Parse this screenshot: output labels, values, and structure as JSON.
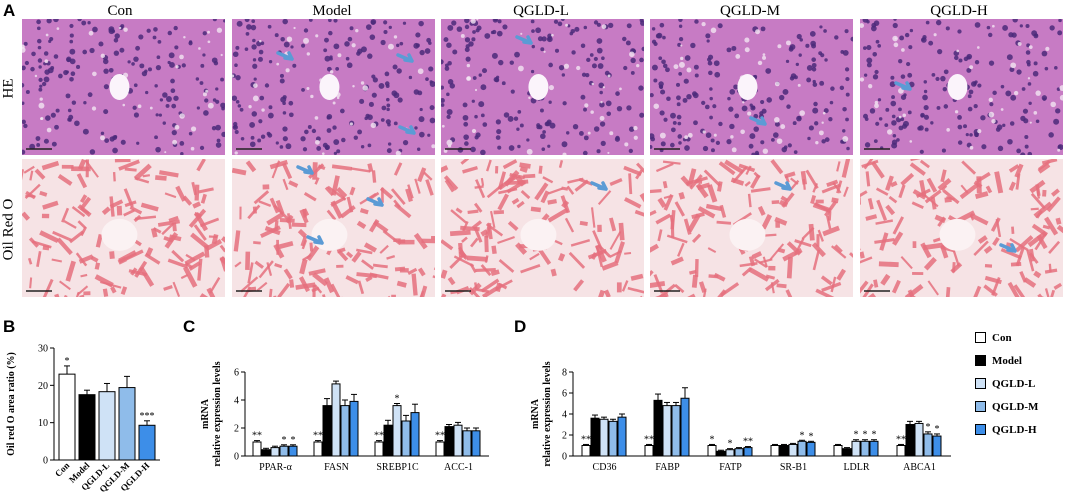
{
  "panel_letters": {
    "a": "A",
    "b": "B",
    "c": "C",
    "d": "D"
  },
  "micrographs": {
    "column_titles": [
      "Con",
      "Model",
      "QGLD-L",
      "QGLD-M",
      "QGLD-H"
    ],
    "row_labels": [
      "HE",
      "Oil Red O"
    ],
    "arrow_color": "#5b9bd5",
    "he_color": "#c77bc4",
    "oil_color": "#e5707e"
  },
  "legend": {
    "items": [
      {
        "label": "Con",
        "color": "#ffffff"
      },
      {
        "label": "Model",
        "color": "#000000"
      },
      {
        "label": "QGLD-L",
        "color": "#cfe2f6"
      },
      {
        "label": "QGLD-M",
        "color": "#8fbcea"
      },
      {
        "label": "QGLD-H",
        "color": "#3d8ee8"
      }
    ]
  },
  "chart_data": [
    {
      "id": "B",
      "type": "bar",
      "ylabel": "Oil red O area ratio (%)",
      "categories": [
        "Con",
        "Model",
        "QGLD-L",
        "QGLD-M",
        "QGLD-H"
      ],
      "values": [
        23,
        17.5,
        18.3,
        19.4,
        9.3
      ],
      "errors": [
        2.2,
        1.2,
        2.2,
        3,
        1.2
      ],
      "significance": [
        "*",
        "",
        "",
        "",
        "***"
      ],
      "colors": [
        "#ffffff",
        "#000000",
        "#cfe2f6",
        "#8fbcea",
        "#3d8ee8"
      ],
      "ylim": [
        0,
        30
      ],
      "yticks": [
        0,
        10,
        20,
        30
      ]
    },
    {
      "id": "C",
      "type": "bar",
      "ylabel_lines": [
        "mRNA",
        "relative expression levels"
      ],
      "categories": [
        "PPAR-α",
        "FASN",
        "SREBP1C",
        "ACC-1"
      ],
      "series": [
        {
          "name": "Con",
          "values": [
            1,
            1,
            1,
            1
          ],
          "errors": [
            0.1,
            0.1,
            0.1,
            0.1
          ],
          "sig": [
            "**",
            "**",
            "**",
            "**"
          ]
        },
        {
          "name": "Model",
          "values": [
            0.45,
            3.6,
            2.2,
            2.1
          ],
          "errors": [
            0.1,
            0.5,
            0.35,
            0.15
          ],
          "sig": [
            "",
            "",
            "",
            ""
          ]
        },
        {
          "name": "QGLD-L",
          "values": [
            0.6,
            5.15,
            3.6,
            2.2
          ],
          "errors": [
            0.1,
            0.2,
            0.15,
            0.2
          ],
          "sig": [
            "",
            "",
            "*",
            ""
          ]
        },
        {
          "name": "QGLD-M",
          "values": [
            0.7,
            3.6,
            2.5,
            1.8
          ],
          "errors": [
            0.1,
            0.4,
            0.4,
            0.2
          ],
          "sig": [
            "*",
            "",
            "",
            ""
          ]
        },
        {
          "name": "QGLD-H",
          "values": [
            0.7,
            3.9,
            3.1,
            1.8
          ],
          "errors": [
            0.1,
            0.5,
            0.6,
            0.2
          ],
          "sig": [
            "*",
            "",
            "",
            ""
          ]
        }
      ],
      "ylim": [
        0,
        6
      ],
      "yticks": [
        0,
        2,
        4,
        6
      ]
    },
    {
      "id": "D",
      "type": "bar",
      "ylabel_lines": [
        "mRNA",
        "relative expression levels"
      ],
      "categories": [
        "CD36",
        "FABP",
        "FATP",
        "SR-B1",
        "LDLR",
        "ABCA1"
      ],
      "series": [
        {
          "name": "Con",
          "values": [
            1,
            1,
            1,
            1,
            1,
            1
          ],
          "errors": [
            0.1,
            0.1,
            0.1,
            0.1,
            0.1,
            0.1
          ],
          "sig": [
            "**",
            "**",
            "*",
            "",
            "",
            "**"
          ]
        },
        {
          "name": "Model",
          "values": [
            3.6,
            5.3,
            0.45,
            1,
            0.7,
            3
          ],
          "errors": [
            0.3,
            0.6,
            0.1,
            0.1,
            0.1,
            0.3
          ],
          "sig": [
            "",
            "",
            "",
            "",
            "",
            ""
          ]
        },
        {
          "name": "QGLD-L",
          "values": [
            3.5,
            4.8,
            0.6,
            1.1,
            1.4,
            3.1
          ],
          "errors": [
            0.2,
            0.3,
            0.1,
            0.1,
            0.15,
            0.2
          ],
          "sig": [
            "",
            "",
            "*",
            "",
            "*",
            ""
          ]
        },
        {
          "name": "QGLD-M",
          "values": [
            3.3,
            4.8,
            0.7,
            1.4,
            1.4,
            2.1
          ],
          "errors": [
            0.2,
            0.3,
            0.1,
            0.1,
            0.15,
            0.2
          ],
          "sig": [
            "",
            "",
            "",
            "*",
            "*",
            "*"
          ]
        },
        {
          "name": "QGLD-H",
          "values": [
            3.7,
            5.5,
            0.8,
            1.3,
            1.4,
            1.9
          ],
          "errors": [
            0.3,
            1,
            0.1,
            0.1,
            0.15,
            0.2
          ],
          "sig": [
            "",
            "",
            "**",
            "*",
            "*",
            "*"
          ]
        }
      ],
      "ylim": [
        0,
        8
      ],
      "yticks": [
        0,
        2,
        4,
        6,
        8
      ]
    }
  ]
}
